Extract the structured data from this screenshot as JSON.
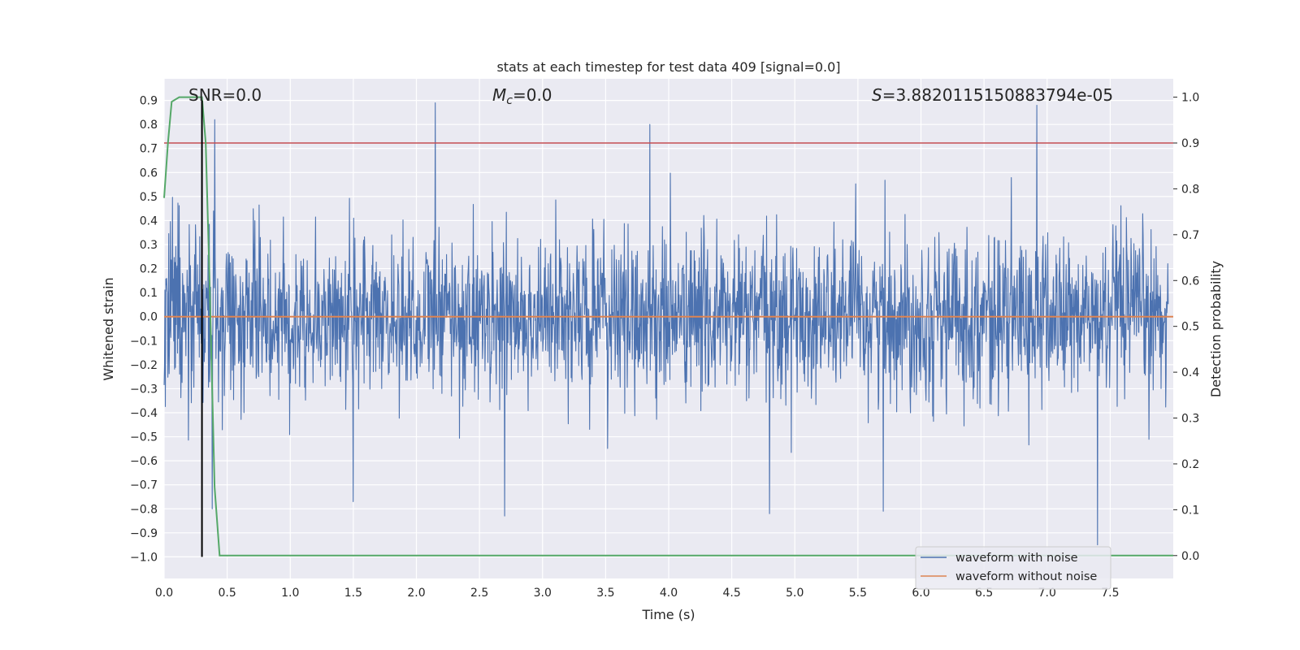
{
  "chart_data": {
    "type": "line",
    "title": "stats at each timestep for test data 409 [signal=0.0]",
    "xlabel": "Time (s)",
    "ylabel_left": "Whitened strain",
    "ylabel_right": "Detection probability",
    "xlim": [
      0.0,
      8.0
    ],
    "ylim_left": [
      -1.09,
      0.99
    ],
    "ylim_right": [
      -0.05,
      1.04
    ],
    "x_ticks": [
      "0.0",
      "0.5",
      "1.0",
      "1.5",
      "2.0",
      "2.5",
      "3.0",
      "3.5",
      "4.0",
      "4.5",
      "5.0",
      "5.5",
      "6.0",
      "6.5",
      "7.0",
      "7.5"
    ],
    "y_left_ticks": [
      "0.9",
      "0.8",
      "0.7",
      "0.6",
      "0.5",
      "0.4",
      "0.3",
      "0.2",
      "0.1",
      "0.0",
      "−0.1",
      "−0.2",
      "−0.3",
      "−0.4",
      "−0.5",
      "−0.6",
      "−0.7",
      "−0.8",
      "−0.9",
      "−1.0"
    ],
    "y_right_ticks": [
      "0.0",
      "0.1",
      "0.2",
      "0.3",
      "0.4",
      "0.5",
      "0.6",
      "0.7",
      "0.8",
      "0.9",
      "1.0"
    ],
    "grid": true,
    "legend_placement": "lower right",
    "annotations": {
      "snr": "SNR=0.0",
      "mc_symbol": "M",
      "mc_sub": "c",
      "mc_value": "=0.0",
      "s_symbol": "S",
      "s_value": "=3.8820115150883794e-05"
    },
    "series": [
      {
        "name": "waveform with noise",
        "axis": "left",
        "color": "#4c72b0",
        "description_range": [
          -0.95,
          0.88
        ],
        "envelope": {
          "typical_low": -0.3,
          "typical_high": 0.3
        },
        "extreme_points": [
          {
            "x": 0.3,
            "y": 0.9
          },
          {
            "x": 0.4,
            "y": 0.82
          },
          {
            "x": 0.38,
            "y": -0.8
          },
          {
            "x": 1.5,
            "y": -0.77
          },
          {
            "x": 2.15,
            "y": 0.89
          },
          {
            "x": 2.7,
            "y": -0.83
          },
          {
            "x": 3.85,
            "y": 0.8
          },
          {
            "x": 4.8,
            "y": -0.82
          },
          {
            "x": 5.7,
            "y": -0.81
          },
          {
            "x": 6.92,
            "y": 0.88
          },
          {
            "x": 7.4,
            "y": -0.95
          }
        ]
      },
      {
        "name": "waveform without noise",
        "axis": "left",
        "color": "#dd8452",
        "x": [
          0.0,
          8.0
        ],
        "y": [
          0.0,
          0.0
        ]
      },
      {
        "axis": "right",
        "color": "#55a868",
        "x": [
          0.0,
          0.03,
          0.06,
          0.12,
          0.2,
          0.3,
          0.33,
          0.36,
          0.4,
          0.44,
          0.5,
          8.0
        ],
        "y": [
          0.78,
          0.9,
          0.99,
          1.0,
          1.0,
          1.0,
          0.9,
          0.6,
          0.15,
          0.0,
          0.0,
          0.0
        ]
      }
    ],
    "threshold_line": {
      "axis": "right",
      "value": 0.9,
      "color": "#c44e52"
    },
    "marker_line": {
      "axis": "left",
      "x": 0.3,
      "y_range": [
        -1.0,
        0.9
      ],
      "color": "#000000"
    }
  }
}
